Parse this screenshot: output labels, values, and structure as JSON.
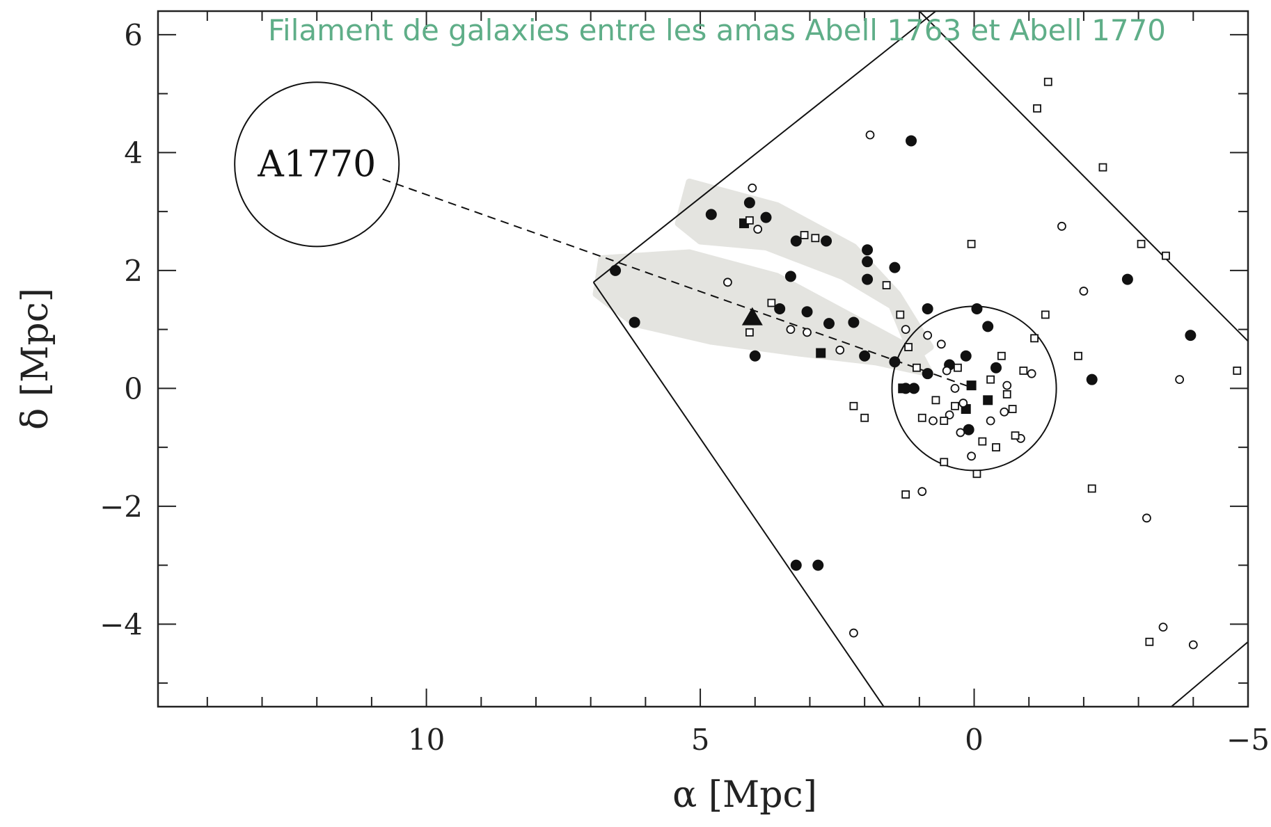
{
  "colors": {
    "title": "#5fae88",
    "shade": "#e4e4e0",
    "ink": "#111111",
    "frame": "#222222",
    "background": "#ffffff"
  },
  "chart_data": {
    "type": "scatter",
    "title": "Filament de galaxies entre les amas Abell 1763 et Abell 1770",
    "xlabel": "α [Mpc]",
    "ylabel": "δ [Mpc]",
    "xlim": [
      14.9,
      -5.0
    ],
    "ylim": [
      -5.4,
      6.4
    ],
    "x_axis_reversed": true,
    "xticks": [
      10,
      5,
      0,
      -5
    ],
    "xtick_labels": [
      "10",
      "5",
      "0",
      "−5"
    ],
    "yticks": [
      -4,
      -2,
      0,
      2,
      4,
      6
    ],
    "ytick_labels": [
      "−4",
      "−2",
      "0",
      "2",
      "4",
      "6"
    ],
    "x_minor_step": 1,
    "y_minor_step": 1,
    "annotations": [
      {
        "text": "A1770",
        "x": 12.0,
        "y": 3.8
      }
    ],
    "clusters": [
      {
        "name": "A1770",
        "center": [
          12.0,
          3.8
        ],
        "radius": 1.5
      },
      {
        "name": "A1763",
        "center": [
          0.0,
          0.0
        ],
        "radius": 1.5
      }
    ],
    "connector_line": {
      "style": "dashed",
      "from": [
        10.8,
        3.55
      ],
      "to": [
        0.0,
        0.0
      ]
    },
    "survey_boundary": [
      [
        [
          6.95,
          1.8
        ],
        [
          0.7,
          6.4
        ]
      ],
      [
        [
          1.0,
          6.4
        ],
        [
          -5.0,
          0.8
        ]
      ],
      [
        [
          6.95,
          1.8
        ],
        [
          1.65,
          -5.4
        ]
      ],
      [
        [
          -3.6,
          -5.4
        ],
        [
          -5.0,
          -4.3
        ]
      ]
    ],
    "filament_regions": [
      [
        [
          5.2,
          3.5
        ],
        [
          3.6,
          3.1
        ],
        [
          2.2,
          2.4
        ],
        [
          1.4,
          1.6
        ],
        [
          0.8,
          0.7
        ],
        [
          1.1,
          0.5
        ],
        [
          1.5,
          1.4
        ],
        [
          2.4,
          1.9
        ],
        [
          3.8,
          2.4
        ],
        [
          5.0,
          2.5
        ],
        [
          5.4,
          2.8
        ]
      ],
      [
        [
          6.8,
          2.2
        ],
        [
          5.2,
          2.3
        ],
        [
          3.6,
          1.9
        ],
        [
          2.2,
          1.2
        ],
        [
          1.0,
          0.6
        ],
        [
          0.8,
          0.25
        ],
        [
          1.8,
          0.45
        ],
        [
          3.2,
          0.6
        ],
        [
          4.8,
          0.8
        ],
        [
          6.2,
          1.1
        ],
        [
          6.9,
          1.6
        ]
      ]
    ],
    "series": [
      {
        "marker": "filled-circle",
        "points": [
          [
            6.55,
            2.0
          ],
          [
            6.2,
            1.12
          ],
          [
            4.8,
            2.95
          ],
          [
            4.1,
            3.15
          ],
          [
            3.8,
            2.9
          ],
          [
            3.25,
            2.5
          ],
          [
            2.7,
            2.5
          ],
          [
            3.35,
            1.9
          ],
          [
            3.55,
            1.35
          ],
          [
            3.05,
            1.3
          ],
          [
            2.65,
            1.1
          ],
          [
            2.2,
            1.12
          ],
          [
            2.0,
            0.55
          ],
          [
            1.95,
            2.35
          ],
          [
            1.95,
            2.15
          ],
          [
            1.95,
            1.85
          ],
          [
            1.45,
            2.05
          ],
          [
            1.45,
            0.45
          ],
          [
            1.25,
            0.0
          ],
          [
            1.1,
            0.0
          ],
          [
            0.85,
            1.35
          ],
          [
            0.85,
            0.25
          ],
          [
            0.45,
            0.4
          ],
          [
            0.15,
            0.55
          ],
          [
            -0.05,
            1.35
          ],
          [
            -0.25,
            1.05
          ],
          [
            -0.4,
            0.35
          ],
          [
            0.1,
            -0.7
          ],
          [
            1.15,
            4.2
          ],
          [
            4.0,
            0.55
          ],
          [
            3.25,
            -3.0
          ],
          [
            2.85,
            -3.0
          ],
          [
            -2.15,
            0.15
          ],
          [
            -2.8,
            1.85
          ],
          [
            -3.95,
            0.9
          ]
        ]
      },
      {
        "marker": "filled-square",
        "points": [
          [
            4.2,
            2.8
          ],
          [
            2.8,
            0.6
          ],
          [
            1.3,
            0.0
          ],
          [
            0.15,
            -0.35
          ],
          [
            -0.25,
            -0.2
          ],
          [
            0.05,
            0.05
          ]
        ]
      },
      {
        "marker": "filled-triangle",
        "points": [
          [
            4.05,
            1.2
          ]
        ]
      },
      {
        "marker": "open-circle",
        "points": [
          [
            1.9,
            4.3
          ],
          [
            4.05,
            3.4
          ],
          [
            3.95,
            2.7
          ],
          [
            4.5,
            1.8
          ],
          [
            3.35,
            1.0
          ],
          [
            2.45,
            0.65
          ],
          [
            1.25,
            1.0
          ],
          [
            0.85,
            0.9
          ],
          [
            0.6,
            0.75
          ],
          [
            0.5,
            0.3
          ],
          [
            0.35,
            0.0
          ],
          [
            0.2,
            -0.25
          ],
          [
            0.45,
            -0.45
          ],
          [
            0.75,
            -0.55
          ],
          [
            0.25,
            -0.75
          ],
          [
            -0.3,
            -0.55
          ],
          [
            -0.55,
            -0.4
          ],
          [
            -0.85,
            -0.85
          ],
          [
            0.05,
            -1.15
          ],
          [
            0.95,
            -1.75
          ],
          [
            -1.05,
            0.25
          ],
          [
            -0.6,
            0.05
          ],
          [
            -1.6,
            2.75
          ],
          [
            -2.0,
            1.65
          ],
          [
            -3.15,
            -2.2
          ],
          [
            -3.45,
            -4.05
          ],
          [
            -3.75,
            0.15
          ],
          [
            -4.0,
            -4.35
          ],
          [
            2.2,
            -4.15
          ],
          [
            3.05,
            0.95
          ]
        ]
      },
      {
        "marker": "open-square",
        "points": [
          [
            4.1,
            2.85
          ],
          [
            3.1,
            2.6
          ],
          [
            2.9,
            2.55
          ],
          [
            1.6,
            1.75
          ],
          [
            3.7,
            1.45
          ],
          [
            4.1,
            0.95
          ],
          [
            1.35,
            1.25
          ],
          [
            1.2,
            0.7
          ],
          [
            1.05,
            0.35
          ],
          [
            0.95,
            -0.5
          ],
          [
            0.7,
            -0.2
          ],
          [
            0.55,
            -0.55
          ],
          [
            0.35,
            -0.3
          ],
          [
            0.3,
            0.35
          ],
          [
            -0.3,
            0.15
          ],
          [
            -0.5,
            0.55
          ],
          [
            -0.6,
            -0.1
          ],
          [
            -0.7,
            -0.35
          ],
          [
            -0.75,
            -0.8
          ],
          [
            -0.4,
            -1.0
          ],
          [
            -0.15,
            -0.9
          ],
          [
            0.55,
            -1.25
          ],
          [
            -0.05,
            -1.45
          ],
          [
            -1.1,
            0.85
          ],
          [
            -0.9,
            0.3
          ],
          [
            -1.3,
            1.25
          ],
          [
            -1.15,
            4.75
          ],
          [
            -1.35,
            5.2
          ],
          [
            -2.35,
            3.75
          ],
          [
            -3.05,
            2.45
          ],
          [
            -3.5,
            2.25
          ],
          [
            -1.9,
            0.55
          ],
          [
            -4.8,
            0.3
          ],
          [
            -2.15,
            -1.7
          ],
          [
            -3.2,
            -4.3
          ],
          [
            1.25,
            -1.8
          ],
          [
            0.05,
            2.45
          ],
          [
            2.2,
            -0.3
          ],
          [
            2.0,
            -0.5
          ]
        ]
      }
    ]
  }
}
